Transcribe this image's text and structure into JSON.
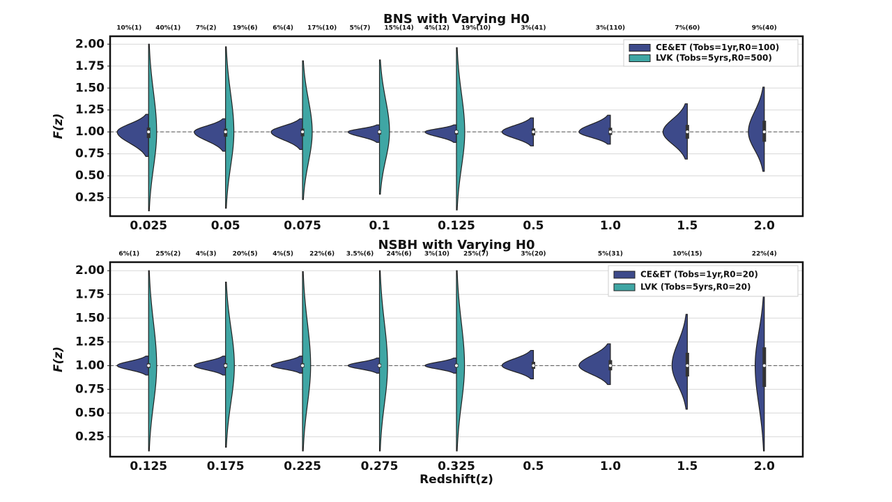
{
  "chart_data": [
    {
      "type": "violin",
      "title": "BNS with Varying H0",
      "ylabel": "F(z)",
      "categories": [
        "0.025",
        "0.05",
        "0.075",
        "0.1",
        "0.125",
        "0.5",
        "1.0",
        "1.5",
        "2.0"
      ],
      "ylim": [
        0.04,
        2.09
      ],
      "yticks": [
        {
          "value": 0.25,
          "label": "0.25"
        },
        {
          "value": 0.5,
          "label": "0.50"
        },
        {
          "value": 0.75,
          "label": "0.75"
        },
        {
          "value": 1,
          "label": "1.00"
        },
        {
          "value": 1.25,
          "label": "1.25"
        },
        {
          "value": 1.5,
          "label": "1.50"
        },
        {
          "value": 1.75,
          "label": "1.75"
        },
        {
          "value": 2,
          "label": "2.00"
        }
      ],
      "grid": true,
      "hline": 1,
      "legend": "upper right",
      "series": [
        {
          "name": "CE&ET (Tobs=1yr,R0=100)",
          "color": "#3d4a8a",
          "min": [
            0.72,
            0.78,
            0.8,
            0.88,
            0.88,
            0.84,
            0.86,
            0.69,
            0.55
          ],
          "max": [
            1.2,
            1.15,
            1.15,
            1.08,
            1.08,
            1.16,
            1.19,
            1.32,
            1.51
          ],
          "annotations": [
            "10%(1)",
            "7%(2)",
            "6%(4)",
            "5%(7)",
            "4%(12)",
            "3%(41)",
            "3%(110)",
            "7%(60)",
            "9%(40)"
          ]
        },
        {
          "name": "LVK (Tobs=5yrs,R0=500)",
          "color": "#3fa6a4",
          "min": [
            0.1,
            0.13,
            0.23,
            0.29,
            0.11,
            null,
            null,
            null,
            null
          ],
          "max": [
            2.0,
            1.97,
            1.81,
            1.82,
            1.96,
            null,
            null,
            null,
            null
          ],
          "annotations": [
            "40%(1)",
            "19%(6)",
            "17%(10)",
            "15%(14)",
            "19%(10)",
            null,
            null,
            null,
            null
          ]
        }
      ]
    },
    {
      "type": "violin",
      "title": "NSBH with Varying H0",
      "ylabel": "F(z)",
      "xlabel": "Redshift(z)",
      "categories": [
        "0.125",
        "0.175",
        "0.225",
        "0.275",
        "0.325",
        "0.5",
        "1.0",
        "1.5",
        "2.0"
      ],
      "ylim": [
        0.04,
        2.09
      ],
      "yticks": [
        {
          "value": 0.25,
          "label": "0.25"
        },
        {
          "value": 0.5,
          "label": "0.50"
        },
        {
          "value": 0.75,
          "label": "0.75"
        },
        {
          "value": 1,
          "label": "1.00"
        },
        {
          "value": 1.25,
          "label": "1.25"
        },
        {
          "value": 1.5,
          "label": "1.50"
        },
        {
          "value": 1.75,
          "label": "1.75"
        },
        {
          "value": 2,
          "label": "2.00"
        }
      ],
      "grid": true,
      "hline": 1,
      "legend": "upper right",
      "series": [
        {
          "name": "CE&ET (Tobs=1yr,R0=20)",
          "color": "#3d4a8a",
          "min": [
            0.9,
            0.9,
            0.92,
            0.92,
            0.92,
            0.86,
            0.8,
            0.54,
            0.1
          ],
          "max": [
            1.1,
            1.1,
            1.1,
            1.08,
            1.08,
            1.16,
            1.23,
            1.54,
            1.77
          ],
          "annotations": [
            "6%(1)",
            "4%(3)",
            "4%(5)",
            "3.5%(6)",
            "3%(10)",
            "3%(20)",
            "5%(31)",
            "10%(15)",
            "22%(4)"
          ]
        },
        {
          "name": "LVK (Tobs=5yrs,R0=20)",
          "color": "#3fa6a4",
          "min": [
            0.1,
            0.14,
            0.1,
            0.1,
            0.1,
            null,
            null,
            null,
            null
          ],
          "max": [
            2.0,
            1.88,
            1.99,
            2.0,
            2.0,
            null,
            null,
            null,
            null
          ],
          "annotations": [
            "25%(2)",
            "20%(5)",
            "22%(6)",
            "24%(6)",
            "25%(7)",
            null,
            null,
            null,
            null
          ]
        }
      ]
    }
  ]
}
